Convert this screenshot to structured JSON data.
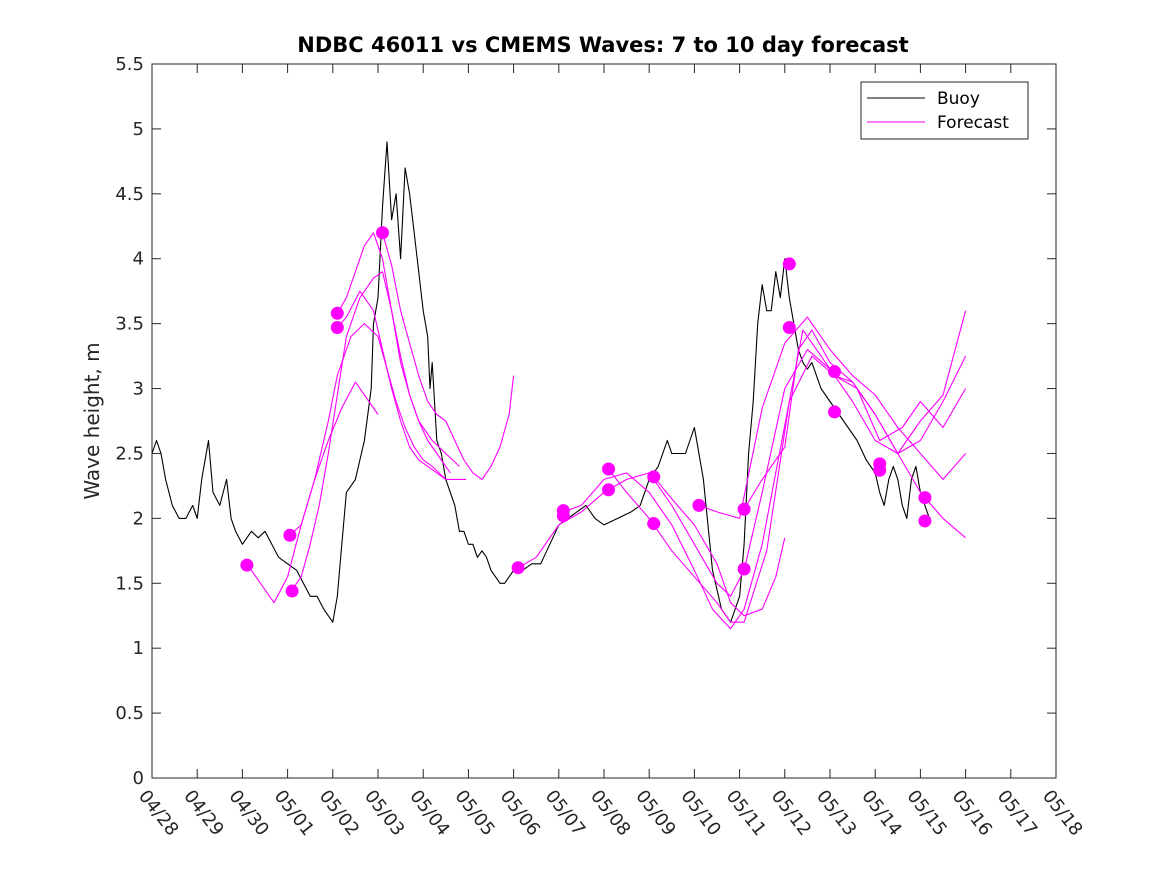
{
  "chart_data": {
    "type": "line",
    "title": "NDBC 46011 vs CMEMS Waves: 7 to 10 day forecast",
    "xlabel": "",
    "ylabel": "Wave height, m",
    "x_ticks": [
      "04/28",
      "04/29",
      "04/30",
      "05/01",
      "05/02",
      "05/03",
      "05/04",
      "05/05",
      "05/06",
      "05/07",
      "05/08",
      "05/09",
      "05/10",
      "05/11",
      "05/12",
      "05/13",
      "05/14",
      "05/15",
      "05/16",
      "05/17",
      "05/18"
    ],
    "y_ticks": [
      "0",
      "0.5",
      "1",
      "1.5",
      "2",
      "2.5",
      "3",
      "3.5",
      "4",
      "4.5",
      "5",
      "5.5"
    ],
    "xlim": [
      "04/28",
      "05/18"
    ],
    "ylim": [
      0,
      5.5
    ],
    "grid": false,
    "legend": {
      "placement": "top-right",
      "entries": [
        "Buoy",
        "Forecast"
      ]
    },
    "colors": {
      "buoy": "#000000",
      "forecast": "#ff00ff"
    },
    "x_unit": "days since 04/28",
    "series": [
      {
        "name": "Buoy",
        "x": [
          0.0,
          0.1,
          0.2,
          0.3,
          0.45,
          0.6,
          0.75,
          0.9,
          1.0,
          1.1,
          1.25,
          1.35,
          1.5,
          1.65,
          1.75,
          1.85,
          2.0,
          2.2,
          2.35,
          2.5,
          2.65,
          2.8,
          3.0,
          3.2,
          3.35,
          3.5,
          3.65,
          3.8,
          3.9,
          4.0,
          4.1,
          4.2,
          4.3,
          4.5,
          4.7,
          4.85,
          4.9,
          5.0,
          5.1,
          5.2,
          5.3,
          5.4,
          5.5,
          5.6,
          5.7,
          5.8,
          5.9,
          6.0,
          6.1,
          6.15,
          6.2,
          6.3,
          6.4,
          6.5,
          6.6,
          6.7,
          6.8,
          6.9,
          7.0,
          7.1,
          7.2,
          7.3,
          7.4,
          7.5,
          7.6,
          7.7,
          7.8,
          7.9,
          8.0,
          8.2,
          8.4,
          8.6,
          8.8,
          9.0,
          9.2,
          9.4,
          9.6,
          9.8,
          10.0,
          10.3,
          10.6,
          10.8,
          11.0,
          11.1,
          11.2,
          11.4,
          11.5,
          11.6,
          11.8,
          11.9,
          12.0,
          12.2,
          12.4,
          12.6,
          12.8,
          13.0,
          13.1,
          13.2,
          13.3,
          13.4,
          13.5,
          13.6,
          13.7,
          13.8,
          13.9,
          14.0,
          14.1,
          14.2,
          14.3,
          14.4,
          14.5,
          14.6,
          14.8,
          15.0,
          15.2,
          15.4,
          15.6,
          15.8,
          16.0,
          16.1,
          16.2,
          16.3,
          16.4,
          16.5,
          16.6,
          16.7,
          16.8,
          16.9,
          17.0,
          17.1,
          17.2
        ],
        "values": [
          2.5,
          2.6,
          2.5,
          2.3,
          2.1,
          2.0,
          2.0,
          2.1,
          2.0,
          2.3,
          2.6,
          2.2,
          2.1,
          2.3,
          2.0,
          1.9,
          1.8,
          1.9,
          1.85,
          1.9,
          1.8,
          1.7,
          1.65,
          1.6,
          1.5,
          1.4,
          1.4,
          1.3,
          1.25,
          1.2,
          1.4,
          1.8,
          2.2,
          2.3,
          2.6,
          3.0,
          3.5,
          3.7,
          4.4,
          4.9,
          4.3,
          4.5,
          4.0,
          4.7,
          4.5,
          4.2,
          3.9,
          3.6,
          3.4,
          3.0,
          3.2,
          2.6,
          2.5,
          2.3,
          2.2,
          2.1,
          1.9,
          1.9,
          1.8,
          1.8,
          1.7,
          1.75,
          1.7,
          1.6,
          1.55,
          1.5,
          1.5,
          1.55,
          1.6,
          1.6,
          1.65,
          1.65,
          1.8,
          1.95,
          2.0,
          2.05,
          2.1,
          2.0,
          1.95,
          2.0,
          2.05,
          2.1,
          2.3,
          2.35,
          2.4,
          2.6,
          2.5,
          2.5,
          2.5,
          2.6,
          2.7,
          2.3,
          1.6,
          1.3,
          1.2,
          1.4,
          1.8,
          2.5,
          2.9,
          3.5,
          3.8,
          3.6,
          3.6,
          3.9,
          3.7,
          4.0,
          3.7,
          3.5,
          3.3,
          3.2,
          3.15,
          3.2,
          3.0,
          2.9,
          2.8,
          2.7,
          2.6,
          2.45,
          2.35,
          2.2,
          2.1,
          2.3,
          2.4,
          2.3,
          2.1,
          2.0,
          2.3,
          2.4,
          2.2,
          2.1,
          2.0
        ]
      },
      {
        "name": "Forecast",
        "x": [
          4.05,
          4.3,
          4.6,
          4.9,
          5.1,
          5.3,
          5.5,
          5.7,
          5.9,
          6.1,
          6.3,
          6.5,
          6.7,
          6.95
        ],
        "values": [
          3.45,
          3.55,
          3.75,
          3.6,
          3.3,
          3.0,
          2.75,
          2.55,
          2.45,
          2.4,
          2.35,
          2.3,
          2.3,
          2.3
        ]
      },
      {
        "name": "Forecast",
        "x": [
          5.1,
          5.3,
          5.5,
          5.7,
          5.9,
          6.1,
          6.3,
          6.5,
          6.7,
          6.9,
          7.1,
          7.3,
          7.5,
          7.7,
          7.9,
          8.0
        ],
        "values": [
          4.2,
          3.95,
          3.6,
          3.35,
          3.1,
          2.9,
          2.8,
          2.75,
          2.6,
          2.45,
          2.35,
          2.3,
          2.4,
          2.55,
          2.8,
          3.1
        ]
      },
      {
        "name": "Forecast",
        "x": [
          3.1,
          3.3,
          3.5,
          3.7,
          3.9,
          4.1,
          4.3,
          4.6,
          4.9,
          5.1,
          5.3,
          5.5,
          5.7,
          5.9,
          6.1,
          6.3,
          6.6
        ],
        "values": [
          1.45,
          1.55,
          1.8,
          2.1,
          2.5,
          2.95,
          3.4,
          3.7,
          3.85,
          3.9,
          3.6,
          3.2,
          2.95,
          2.75,
          2.6,
          2.5,
          2.35
        ]
      },
      {
        "name": "Forecast",
        "x": [
          3.05,
          3.3,
          3.6,
          3.9,
          4.1,
          4.4,
          4.7,
          5.0,
          5.2,
          5.4,
          5.6,
          5.8,
          6.0,
          6.2,
          6.5
        ],
        "values": [
          1.87,
          1.95,
          2.3,
          2.75,
          3.1,
          3.4,
          3.5,
          3.4,
          3.15,
          2.9,
          2.7,
          2.55,
          2.45,
          2.4,
          2.3
        ]
      },
      {
        "name": "Forecast",
        "x": [
          4.1,
          4.3,
          4.5,
          4.7,
          4.9,
          5.1,
          5.3,
          5.5,
          5.7,
          5.9,
          6.2,
          6.5,
          6.8
        ],
        "values": [
          3.58,
          3.7,
          3.9,
          4.1,
          4.2,
          4.0,
          3.6,
          3.25,
          2.95,
          2.75,
          2.6,
          2.5,
          2.4
        ]
      },
      {
        "name": "Forecast",
        "x": [
          2.1,
          2.4,
          2.7,
          3.0,
          3.3,
          3.6,
          3.9,
          4.2,
          4.5,
          4.8,
          5.0
        ],
        "values": [
          1.65,
          1.5,
          1.35,
          1.55,
          1.95,
          2.3,
          2.6,
          2.85,
          3.05,
          2.9,
          2.8
        ]
      },
      {
        "name": "Forecast",
        "x": [
          8.1,
          8.5,
          9.0,
          9.5,
          10.0,
          10.5,
          11.0,
          11.5,
          12.0,
          12.5,
          12.8,
          13.1,
          13.5,
          14.0,
          14.5,
          15.0,
          15.5,
          16.0,
          16.5,
          17.0,
          17.5,
          18.0
        ],
        "values": [
          1.62,
          1.7,
          1.95,
          2.05,
          2.2,
          2.3,
          2.35,
          2.1,
          1.8,
          1.5,
          1.4,
          1.6,
          2.2,
          3.0,
          3.3,
          3.15,
          2.9,
          2.6,
          2.5,
          2.2,
          2.0,
          1.85
        ]
      },
      {
        "name": "Forecast",
        "x": [
          9.1,
          9.5,
          10.0,
          10.5,
          11.0,
          11.5,
          12.0,
          12.4,
          12.8,
          13.1,
          13.5,
          14.1,
          14.4,
          14.8,
          15.1,
          15.5,
          16.0,
          16.5,
          17.0,
          17.5,
          18.0
        ],
        "values": [
          2.05,
          2.1,
          2.3,
          2.35,
          2.2,
          1.95,
          1.6,
          1.3,
          1.15,
          1.3,
          1.8,
          2.9,
          3.45,
          3.25,
          3.1,
          3.05,
          2.8,
          2.5,
          2.75,
          2.95,
          3.6
        ]
      },
      {
        "name": "Forecast",
        "x": [
          10.1,
          10.5,
          11.0,
          11.5,
          12.0,
          12.5,
          12.8,
          13.1,
          13.6,
          14.1,
          14.6,
          15.1,
          15.6,
          16.1,
          16.6,
          17.0,
          17.5,
          18.0
        ],
        "values": [
          2.38,
          2.2,
          2.0,
          1.75,
          1.55,
          1.35,
          1.2,
          1.2,
          1.75,
          2.9,
          3.25,
          3.1,
          3.0,
          2.6,
          2.7,
          2.9,
          2.7,
          3.0
        ]
      },
      {
        "name": "Forecast",
        "x": [
          11.1,
          11.5,
          12.0,
          12.5,
          12.8,
          13.1,
          13.5,
          13.8,
          14.0
        ],
        "values": [
          2.32,
          2.15,
          1.95,
          1.65,
          1.35,
          1.25,
          1.3,
          1.55,
          1.85
        ]
      },
      {
        "name": "Forecast",
        "x": [
          13.1,
          13.5,
          14.0,
          14.3,
          14.6,
          15.0,
          15.5,
          16.0,
          16.5,
          17.0,
          17.5,
          18.0
        ],
        "values": [
          2.07,
          2.3,
          2.55,
          3.3,
          3.45,
          3.2,
          3.05,
          2.8,
          2.5,
          2.6,
          2.9,
          3.25
        ]
      },
      {
        "name": "Forecast",
        "x": [
          12.1,
          12.5,
          13.0,
          13.5,
          14.0,
          14.5,
          15.0,
          15.5,
          16.0,
          16.5,
          17.0,
          17.5,
          18.0
        ],
        "values": [
          2.1,
          2.05,
          2.0,
          2.85,
          3.35,
          3.55,
          3.3,
          3.1,
          2.95,
          2.7,
          2.5,
          2.3,
          2.5
        ]
      }
    ],
    "forecast_markers": {
      "x": [
        4.1,
        4.1,
        5.1,
        3.05,
        3.1,
        2.1,
        8.1,
        9.1,
        9.1,
        10.1,
        10.1,
        11.1,
        11.1,
        12.1,
        13.1,
        13.1,
        14.1,
        14.1,
        15.1,
        15.1,
        16.1,
        16.1,
        17.1,
        17.1
      ],
      "values": [
        3.58,
        3.47,
        4.2,
        1.87,
        1.44,
        1.64,
        1.62,
        2.06,
        2.02,
        2.38,
        2.22,
        2.32,
        1.96,
        2.1,
        2.07,
        1.61,
        3.96,
        3.47,
        3.13,
        2.82,
        2.42,
        2.37,
        2.16,
        1.98
      ]
    }
  }
}
